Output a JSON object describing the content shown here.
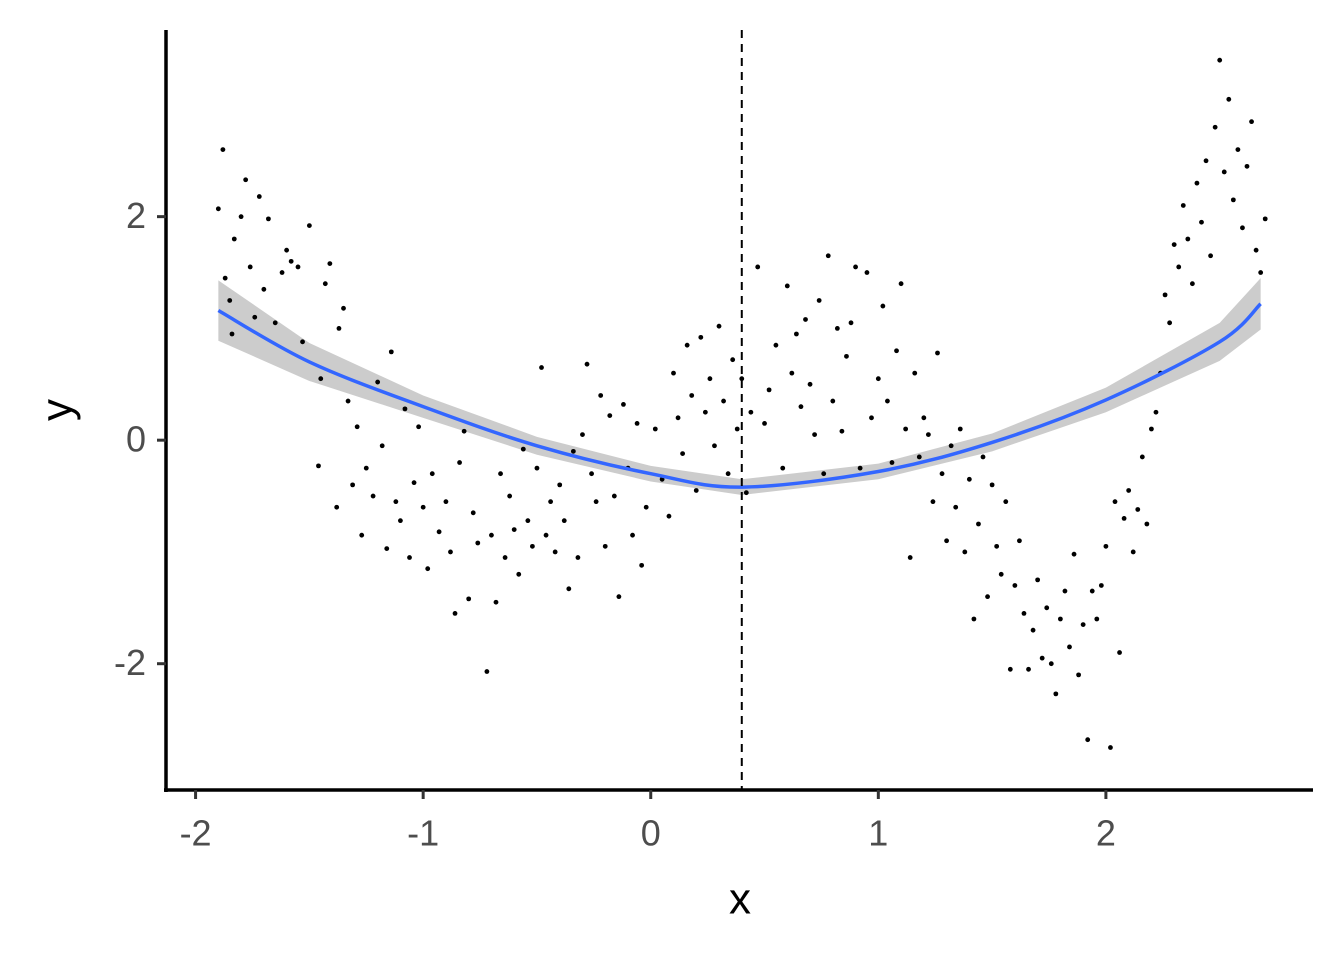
{
  "chart_data": {
    "type": "scatter",
    "x_label": "x",
    "y_label": "y",
    "xlim": [
      -2.13,
      2.91
    ],
    "ylim": [
      -3.13,
      3.67
    ],
    "xticks": [
      -2,
      -1,
      0,
      1,
      2
    ],
    "yticks": [
      -2,
      0,
      2
    ],
    "grid": false,
    "point_color": "#000000",
    "x": [
      -1.9,
      -1.88,
      -1.87,
      -1.85,
      -1.84,
      -1.83,
      -1.8,
      -1.78,
      -1.76,
      -1.74,
      -1.72,
      -1.7,
      -1.68,
      -1.65,
      -1.62,
      -1.6,
      -1.58,
      -1.55,
      -1.53,
      -1.5,
      -1.46,
      -1.45,
      -1.43,
      -1.41,
      -1.38,
      -1.37,
      -1.35,
      -1.33,
      -1.31,
      -1.29,
      -1.27,
      -1.25,
      -1.22,
      -1.2,
      -1.18,
      -1.16,
      -1.14,
      -1.12,
      -1.1,
      -1.08,
      -1.06,
      -1.04,
      -1.02,
      -1.0,
      -0.98,
      -0.96,
      -0.93,
      -0.9,
      -0.88,
      -0.86,
      -0.84,
      -0.82,
      -0.8,
      -0.78,
      -0.76,
      -0.72,
      -0.7,
      -0.68,
      -0.66,
      -0.64,
      -0.62,
      -0.6,
      -0.58,
      -0.56,
      -0.54,
      -0.52,
      -0.5,
      -0.48,
      -0.46,
      -0.44,
      -0.42,
      -0.4,
      -0.38,
      -0.36,
      -0.34,
      -0.32,
      -0.3,
      -0.28,
      -0.26,
      -0.24,
      -0.22,
      -0.2,
      -0.18,
      -0.16,
      -0.14,
      -0.12,
      -0.1,
      -0.08,
      -0.06,
      -0.04,
      -0.02,
      0.02,
      0.05,
      0.08,
      0.1,
      0.12,
      0.14,
      0.16,
      0.18,
      0.2,
      0.22,
      0.24,
      0.26,
      0.28,
      0.3,
      0.32,
      0.34,
      0.36,
      0.38,
      0.4,
      0.42,
      0.44,
      0.47,
      0.5,
      0.52,
      0.55,
      0.58,
      0.6,
      0.62,
      0.64,
      0.66,
      0.68,
      0.7,
      0.72,
      0.74,
      0.76,
      0.78,
      0.8,
      0.82,
      0.84,
      0.86,
      0.88,
      0.9,
      0.92,
      0.95,
      0.97,
      1.0,
      1.02,
      1.04,
      1.06,
      1.08,
      1.1,
      1.12,
      1.14,
      1.16,
      1.18,
      1.2,
      1.22,
      1.24,
      1.26,
      1.28,
      1.3,
      1.32,
      1.34,
      1.36,
      1.38,
      1.4,
      1.42,
      1.44,
      1.46,
      1.48,
      1.5,
      1.52,
      1.54,
      1.56,
      1.58,
      1.6,
      1.62,
      1.64,
      1.66,
      1.68,
      1.7,
      1.72,
      1.74,
      1.76,
      1.78,
      1.8,
      1.82,
      1.84,
      1.86,
      1.88,
      1.9,
      1.92,
      1.94,
      1.96,
      1.98,
      2.0,
      2.02,
      2.04,
      2.06,
      2.08,
      2.1,
      2.12,
      2.14,
      2.16,
      2.18,
      2.2,
      2.22,
      2.24,
      2.26,
      2.28,
      2.3,
      2.32,
      2.34,
      2.36,
      2.38,
      2.4,
      2.42,
      2.44,
      2.46,
      2.48,
      2.5,
      2.52,
      2.54,
      2.56,
      2.58,
      2.6,
      2.62,
      2.64,
      2.66,
      2.68,
      2.7
    ],
    "y": [
      2.07,
      2.6,
      1.45,
      1.25,
      0.95,
      1.8,
      2.0,
      2.33,
      1.55,
      1.1,
      2.18,
      1.35,
      1.98,
      1.05,
      1.5,
      1.7,
      1.6,
      1.55,
      0.88,
      1.92,
      -0.23,
      0.55,
      1.4,
      1.58,
      -0.6,
      1.0,
      1.18,
      0.35,
      -0.4,
      0.12,
      -0.85,
      -0.25,
      -0.5,
      0.52,
      -0.05,
      -0.97,
      0.79,
      -0.55,
      -0.72,
      0.28,
      -1.05,
      -0.38,
      0.12,
      -0.6,
      -1.15,
      -0.3,
      -0.82,
      -0.55,
      -1.0,
      -1.55,
      -0.2,
      0.08,
      -1.42,
      -0.65,
      -0.92,
      -2.07,
      -0.85,
      -1.45,
      -0.3,
      -1.05,
      -0.5,
      -0.8,
      -1.2,
      -0.08,
      -0.72,
      -0.95,
      -0.25,
      0.65,
      -0.85,
      -0.55,
      -1.0,
      -0.4,
      -0.72,
      -1.33,
      -0.1,
      -1.05,
      0.05,
      0.68,
      -0.3,
      -0.55,
      0.4,
      -0.95,
      0.22,
      -0.5,
      -1.4,
      0.32,
      -0.25,
      -0.85,
      0.15,
      -1.12,
      -0.6,
      0.1,
      -0.35,
      -0.68,
      0.6,
      0.2,
      -0.12,
      0.85,
      0.4,
      -0.45,
      0.92,
      0.25,
      0.55,
      -0.05,
      1.02,
      0.35,
      -0.3,
      0.72,
      0.1,
      0.55,
      -0.47,
      0.25,
      1.55,
      0.15,
      0.45,
      0.85,
      -0.25,
      1.38,
      0.6,
      0.95,
      0.3,
      1.08,
      0.5,
      0.05,
      1.25,
      -0.3,
      1.65,
      0.35,
      1.0,
      0.08,
      0.75,
      1.05,
      1.55,
      -0.25,
      1.5,
      0.2,
      0.55,
      1.2,
      0.35,
      -0.2,
      0.8,
      1.4,
      0.1,
      -1.05,
      0.6,
      -0.15,
      0.2,
      0.05,
      -0.55,
      0.78,
      -0.3,
      -0.9,
      -0.05,
      -0.6,
      0.1,
      -1.0,
      -0.35,
      -1.6,
      -0.75,
      -0.15,
      -1.4,
      -0.4,
      -0.95,
      -1.2,
      -0.55,
      -2.05,
      -1.3,
      -0.9,
      -1.55,
      -2.05,
      -1.7,
      -1.25,
      -1.95,
      -1.5,
      -2.0,
      -2.27,
      -1.6,
      -1.35,
      -1.85,
      -1.02,
      -2.1,
      -1.65,
      -2.68,
      -1.35,
      -1.6,
      -1.3,
      -0.95,
      -2.75,
      -0.55,
      -1.9,
      -0.7,
      -0.45,
      -1.0,
      -0.62,
      -0.15,
      -0.75,
      0.1,
      0.25,
      0.6,
      1.3,
      1.05,
      1.75,
      1.55,
      2.1,
      1.8,
      1.4,
      2.3,
      1.95,
      2.5,
      1.65,
      2.8,
      3.4,
      2.4,
      3.05,
      2.15,
      2.6,
      1.9,
      2.45,
      2.85,
      1.7,
      1.5,
      1.98
    ],
    "fit": {
      "color": "#3366ff",
      "band_color": "#cccccc",
      "x": [
        -1.9,
        -1.5,
        -1,
        -0.5,
        0,
        0.4,
        1,
        1.5,
        2,
        2.5,
        2.68
      ],
      "y": [
        1.16,
        0.7,
        0.3,
        -0.05,
        -0.3,
        -0.42,
        -0.28,
        -0.02,
        0.36,
        0.88,
        1.22
      ],
      "ymin": [
        0.89,
        0.53,
        0.2,
        -0.13,
        -0.37,
        -0.49,
        -0.35,
        -0.1,
        0.25,
        0.71,
        0.99
      ],
      "ymax": [
        1.43,
        0.87,
        0.4,
        0.03,
        -0.23,
        -0.35,
        -0.21,
        0.06,
        0.47,
        1.05,
        1.45
      ]
    },
    "vline": {
      "x": 0.4,
      "style": "dashed",
      "color": "#000000"
    }
  }
}
